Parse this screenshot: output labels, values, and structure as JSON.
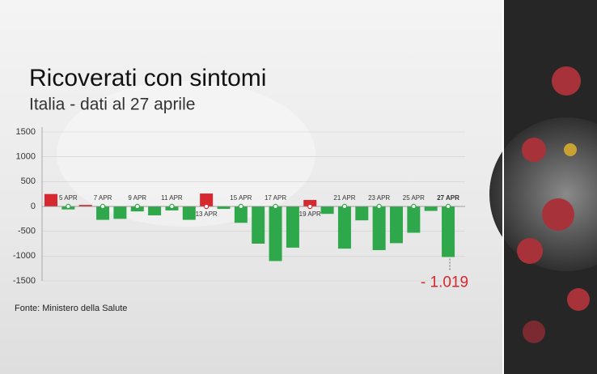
{
  "chart_data": {
    "type": "bar",
    "title": "Ricoverati con sintomi",
    "subtitle": "Italia - dati al 27 aprile",
    "source": "Fonte: Ministero della Salute",
    "categories": [
      null,
      "5 APR",
      null,
      "7 APR",
      null,
      "9 APR",
      null,
      "11 APR",
      null,
      "13 APR",
      null,
      "15 APR",
      null,
      "17 APR",
      null,
      "19 APR",
      null,
      "21 APR",
      null,
      "23 APR",
      null,
      "25 APR",
      null,
      "27 APR"
    ],
    "values": [
      250,
      -60,
      30,
      -270,
      -250,
      -100,
      -180,
      -80,
      -270,
      260,
      -50,
      -330,
      -750,
      -1100,
      -830,
      130,
      -150,
      -850,
      -280,
      -880,
      -740,
      -530,
      -90,
      -1019
    ],
    "value_labels": [
      null,
      null,
      null,
      null,
      null,
      null,
      null,
      null,
      null,
      null,
      null,
      null,
      null,
      null,
      null,
      null,
      null,
      null,
      null,
      null,
      null,
      null,
      null,
      "- 1.019"
    ],
    "positive_color": "#d7282f",
    "negative_color": "#2ea84a",
    "ylim": [
      -1500,
      1500
    ],
    "yticks": [
      1500,
      1000,
      500,
      0,
      -500,
      -1000,
      -1500
    ],
    "grid": true
  }
}
